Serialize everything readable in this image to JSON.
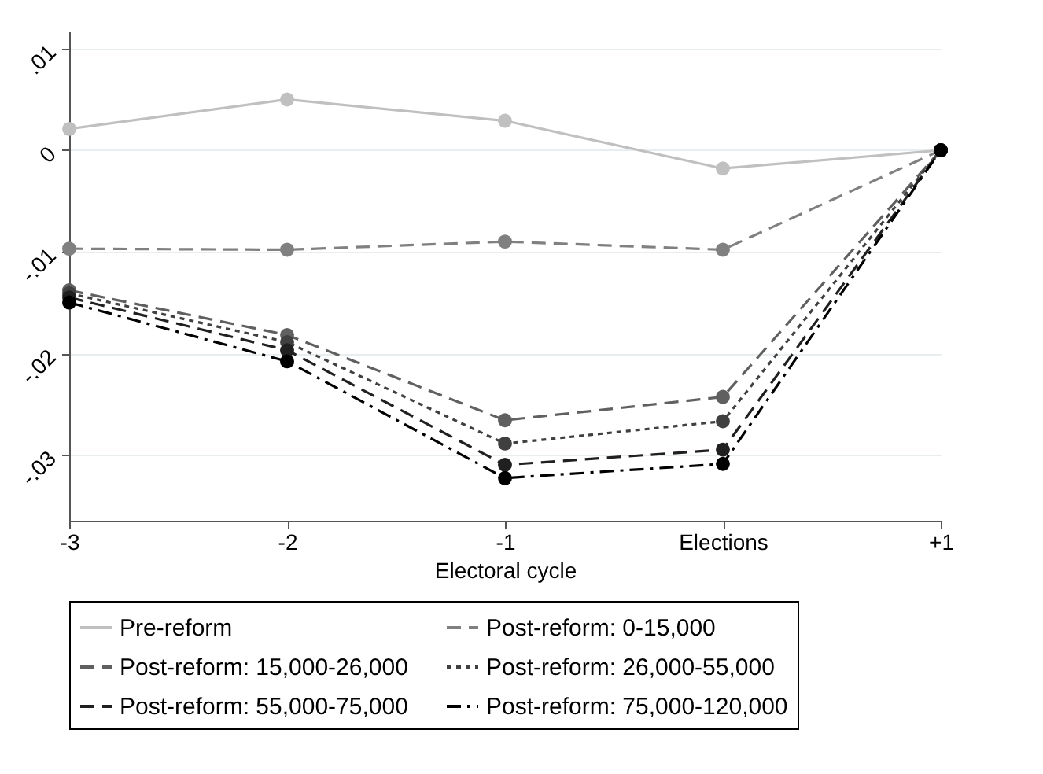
{
  "chart_data": {
    "type": "line",
    "xlabel": "Electoral cycle",
    "categories": [
      "-3",
      "-2",
      "-1",
      "Elections",
      "+1"
    ],
    "ylim": [
      -0.0365,
      0.0117
    ],
    "yticks": [
      {
        "value": 0.01,
        "label": ".01"
      },
      0,
      {
        "value": -0.01,
        "label": "-.01"
      },
      {
        "value": -0.02,
        "label": "-.02"
      },
      {
        "value": -0.03,
        "label": "-.03"
      }
    ],
    "grid": "y",
    "legend": "bottom",
    "marker": "circle",
    "series": [
      {
        "name": "Pre-reform",
        "color": "#c0c0c0",
        "line_style": "solid",
        "values": [
          0.0021,
          0.005,
          0.0029,
          -0.0018,
          0
        ]
      },
      {
        "name": "Post-reform: 0-15,000",
        "color": "#808080",
        "line_style": "dashed",
        "values": [
          -0.0097,
          -0.0098,
          -0.009,
          -0.0098,
          0
        ]
      },
      {
        "name": "Post-reform: 15,000-26,000",
        "color": "#606060",
        "line_style": "dashed",
        "values": [
          -0.0138,
          -0.0182,
          -0.0266,
          -0.0243,
          0
        ]
      },
      {
        "name": "Post-reform: 26,000-55,000",
        "color": "#404040",
        "line_style": "dotted",
        "values": [
          -0.0141,
          -0.0189,
          -0.0289,
          -0.0267,
          0
        ]
      },
      {
        "name": "Post-reform: 55,000-75,000",
        "color": "#202020",
        "line_style": "dashed",
        "values": [
          -0.0145,
          -0.0197,
          -0.031,
          -0.0295,
          0
        ]
      },
      {
        "name": "Post-reform: 75,000-120,000",
        "color": "#000000",
        "line_style": "dashdot",
        "values": [
          -0.015,
          -0.0208,
          -0.0323,
          -0.0309,
          0
        ]
      }
    ]
  }
}
